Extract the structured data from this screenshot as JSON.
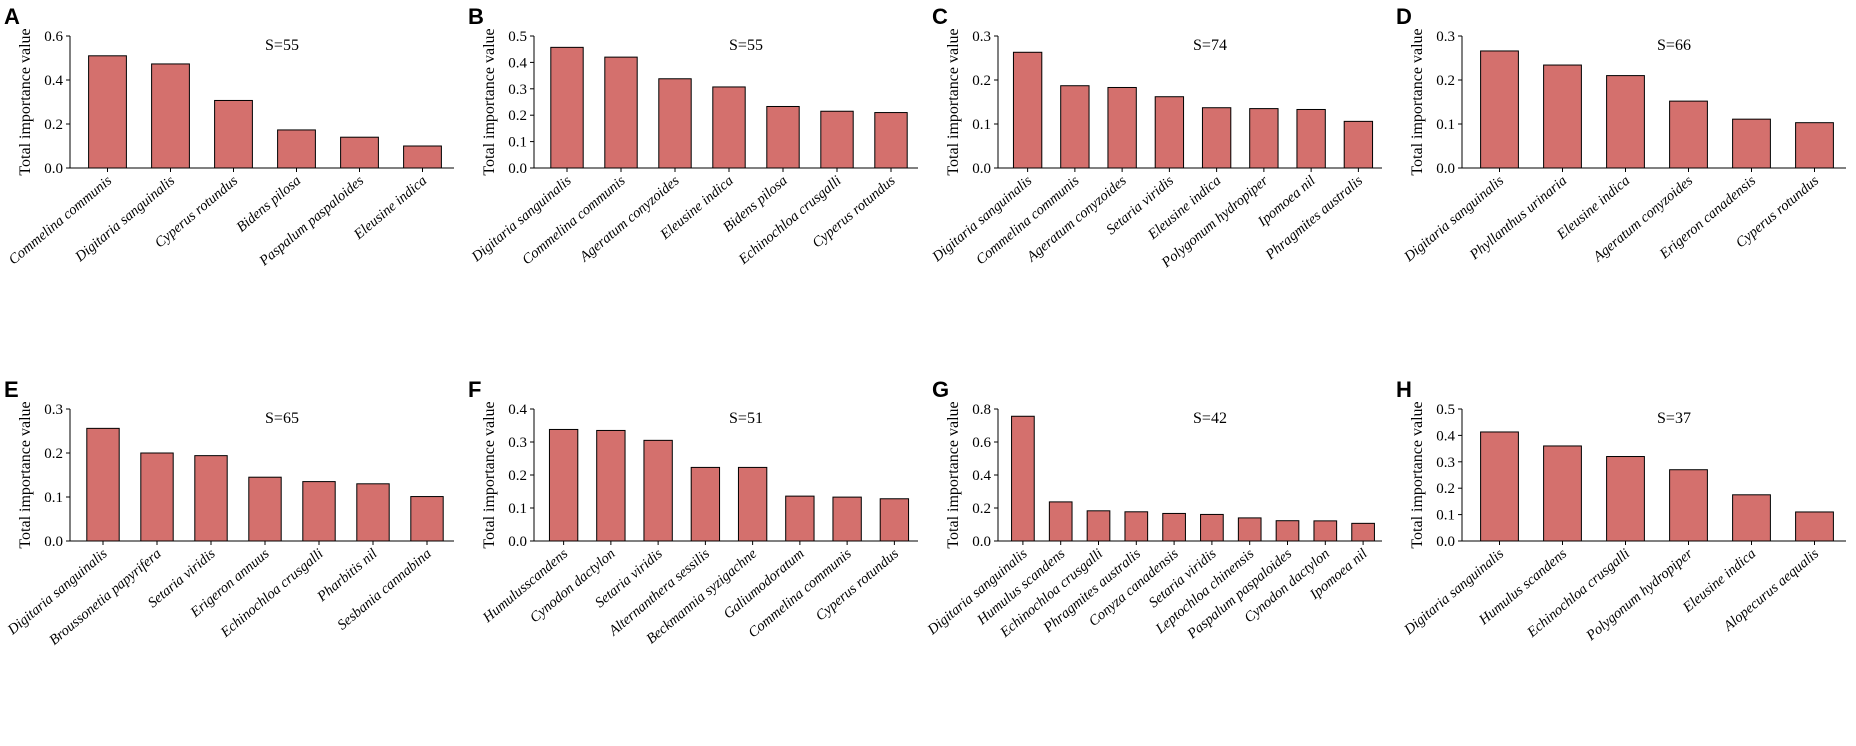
{
  "chart_data": [
    {
      "panel": "A",
      "type": "bar",
      "title": "S=55",
      "ylabel": "Total importance value",
      "ylim": [
        0,
        0.6
      ],
      "yticks": [
        "0.0",
        "0.2",
        "0.4",
        "0.6"
      ],
      "categories": [
        "Commelina communis",
        "Digitaria sanguinalis",
        "Cyperus rotundus",
        "Bidens pilosa",
        "Paspalum paspaloides",
        "Eleusine indica"
      ],
      "values": [
        0.51,
        0.473,
        0.307,
        0.173,
        0.14,
        0.1
      ]
    },
    {
      "panel": "B",
      "type": "bar",
      "title": "S=55",
      "ylabel": "Total importance value",
      "ylim": [
        0,
        0.5
      ],
      "yticks": [
        "0.0",
        "0.1",
        "0.2",
        "0.3",
        "0.4",
        "0.5"
      ],
      "categories": [
        "Digitaria sanguinalis",
        "Commelina communis",
        "Ageratum conyzoides",
        "Eleusine indica",
        "Bidens pilosa",
        "Echinochloa crusgalli",
        "Cyperus rotundus"
      ],
      "values": [
        0.457,
        0.42,
        0.338,
        0.307,
        0.233,
        0.215,
        0.21
      ]
    },
    {
      "panel": "C",
      "type": "bar",
      "title": "S=74",
      "ylabel": "Total importance value",
      "ylim": [
        0,
        0.3
      ],
      "yticks": [
        "0.0",
        "0.1",
        "0.2",
        "0.3"
      ],
      "categories": [
        "Digitaria sanguinalis",
        "Commelina communis",
        "Ageratum conyzoides",
        "Setaria viridis",
        "Eleusine indica",
        "Polygonum hydropiper",
        "Ipomoea nil",
        "Phragmites australis"
      ],
      "values": [
        0.263,
        0.187,
        0.183,
        0.162,
        0.137,
        0.135,
        0.133,
        0.106
      ]
    },
    {
      "panel": "D",
      "type": "bar",
      "title": "S=66",
      "ylabel": "Total importance value",
      "ylim": [
        0,
        0.3
      ],
      "yticks": [
        "0.0",
        "0.1",
        "0.2",
        "0.3"
      ],
      "categories": [
        "Digitaria sanguinalis",
        "Phyllanthus urinaria",
        "Eleusine indica",
        "Ageratum conyzoides",
        "Erigeron canadensis",
        "Cyperus rotundus"
      ],
      "values": [
        0.266,
        0.234,
        0.21,
        0.152,
        0.111,
        0.103
      ]
    },
    {
      "panel": "E",
      "type": "bar",
      "title": "S=65",
      "ylabel": "Total importance value",
      "ylim": [
        0,
        0.3
      ],
      "yticks": [
        "0.0",
        "0.1",
        "0.2",
        "0.3"
      ],
      "categories": [
        "Digitaria sanguinalis",
        "Broussonetia papyrifera",
        "Setaria viridis",
        "Erigeron annuus",
        "Echinochloa crusgalli",
        "Pharbitis nil",
        "Sesbania cannabina"
      ],
      "values": [
        0.256,
        0.2,
        0.194,
        0.145,
        0.135,
        0.13,
        0.101
      ]
    },
    {
      "panel": "F",
      "type": "bar",
      "title": "S=51",
      "ylabel": "Total importance value",
      "ylim": [
        0,
        0.4
      ],
      "yticks": [
        "0.0",
        "0.1",
        "0.2",
        "0.3",
        "0.4"
      ],
      "categories": [
        "Humulusscandens",
        "Cynodon dactylon",
        "Setaria viridis",
        "Alternanthera sessilis",
        "Beckmannia syzigachne",
        "Galiumodoratum",
        "Commelina communis",
        "Cyperus rotundus"
      ],
      "values": [
        0.338,
        0.335,
        0.305,
        0.223,
        0.223,
        0.136,
        0.133,
        0.128
      ]
    },
    {
      "panel": "G",
      "type": "bar",
      "title": "S=42",
      "ylabel": "Total importance value",
      "ylim": [
        0,
        0.8
      ],
      "yticks": [
        "0.0",
        "0.2",
        "0.4",
        "0.6",
        "0.8"
      ],
      "categories": [
        "Digitaria sanguinalis",
        "Humulus scandens",
        "Echinochloa crusgalli",
        "Phragmites australis",
        "Conyza canadensis",
        "Setaria viridis",
        "Leptochloa chinensis",
        "Paspalum paspaloides",
        "Cynodon dactylon",
        "Ipomoea nil"
      ],
      "values": [
        0.756,
        0.237,
        0.183,
        0.177,
        0.167,
        0.161,
        0.14,
        0.123,
        0.122,
        0.107
      ]
    },
    {
      "panel": "H",
      "type": "bar",
      "title": "S=37",
      "ylabel": "Total importance value",
      "ylim": [
        0,
        0.5
      ],
      "yticks": [
        "0.0",
        "0.1",
        "0.2",
        "0.3",
        "0.4",
        "0.5"
      ],
      "categories": [
        "Digitaria sanguinalis",
        "Humulus scandens",
        "Echinochloa crusgalli",
        "Polygonum hydropiper",
        "Eleusine indica",
        "Alopecurus aequalis"
      ],
      "values": [
        0.413,
        0.36,
        0.32,
        0.27,
        0.175,
        0.11
      ]
    }
  ],
  "colors": {
    "bar_fill": "#d4706d",
    "bar_stroke": "#000000"
  }
}
